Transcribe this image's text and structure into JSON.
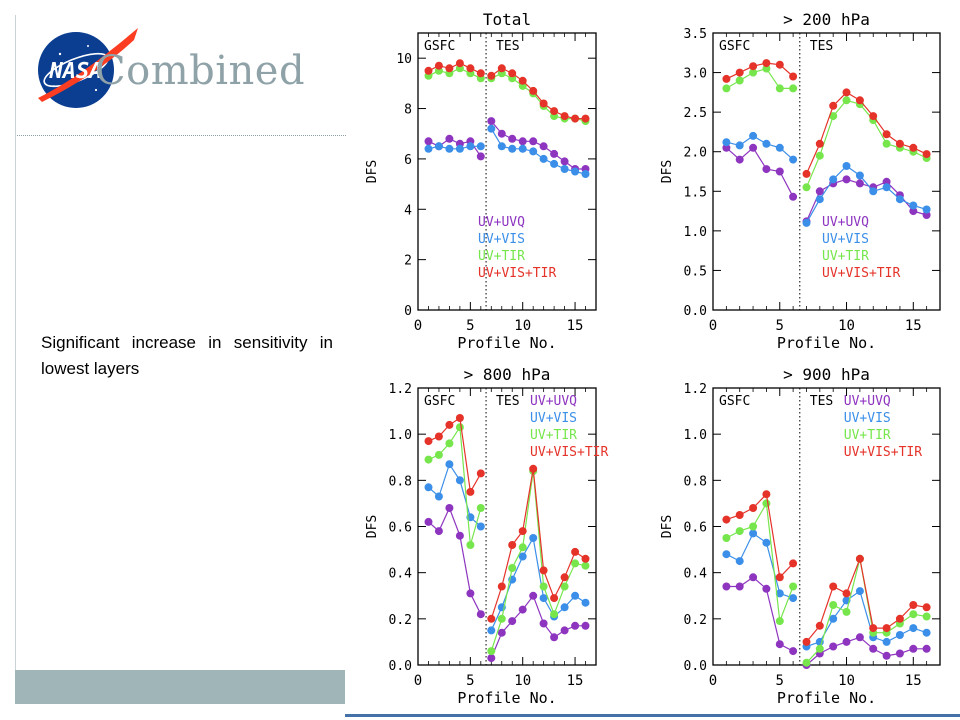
{
  "slide": {
    "title": "Combined",
    "body_text": "Significant increase in sensitivity in lowest layers",
    "logo": "nasa-meatball-logo"
  },
  "colors": {
    "UV+UVQ": "#8e35c0",
    "UV+VIS": "#3b8fe8",
    "UV+TIR": "#77e64d",
    "UV+VIS+TIR": "#e5332a"
  },
  "chart_data": [
    {
      "type": "line",
      "title": "Total",
      "xlabel": "Profile No.",
      "ylabel": "DFS",
      "xlim": [
        0,
        17
      ],
      "ylim": [
        0,
        11
      ],
      "xticks": [
        0,
        5,
        10,
        15
      ],
      "yticks": [
        0,
        2,
        4,
        6,
        8,
        10
      ],
      "ytick_labels": [
        "0",
        "2",
        "4",
        "6",
        "8",
        "10"
      ],
      "region_labels": [
        "GSFC",
        "TES"
      ],
      "divider_x": 6.5,
      "legend_placement": "lower-right",
      "segments": [
        [
          1,
          6
        ],
        [
          7,
          16
        ]
      ],
      "x": [
        1,
        2,
        3,
        4,
        5,
        6,
        7,
        8,
        9,
        10,
        11,
        12,
        13,
        14,
        15,
        16
      ],
      "series": [
        {
          "name": "UV+UVQ",
          "values": [
            6.7,
            6.5,
            6.8,
            6.6,
            6.7,
            6.1,
            7.5,
            7.0,
            6.8,
            6.7,
            6.7,
            6.5,
            6.2,
            5.9,
            5.6,
            5.6
          ]
        },
        {
          "name": "UV+VIS",
          "values": [
            6.4,
            6.5,
            6.4,
            6.4,
            6.5,
            6.5,
            7.2,
            6.5,
            6.4,
            6.4,
            6.3,
            6.0,
            5.8,
            5.6,
            5.5,
            5.4
          ]
        },
        {
          "name": "UV+TIR",
          "values": [
            9.3,
            9.5,
            9.4,
            9.6,
            9.4,
            9.2,
            9.2,
            9.4,
            9.2,
            8.9,
            8.6,
            8.1,
            7.7,
            7.6,
            7.6,
            7.5
          ]
        },
        {
          "name": "UV+VIS+TIR",
          "values": [
            9.5,
            9.7,
            9.6,
            9.8,
            9.6,
            9.4,
            9.3,
            9.6,
            9.4,
            9.1,
            8.7,
            8.2,
            7.9,
            7.7,
            7.6,
            7.6
          ]
        }
      ]
    },
    {
      "type": "line",
      "title": "> 200 hPa",
      "xlabel": "Profile No.",
      "ylabel": "DFS",
      "xlim": [
        0,
        17
      ],
      "ylim": [
        0,
        3.5
      ],
      "xticks": [
        0,
        5,
        10,
        15
      ],
      "yticks": [
        0,
        0.5,
        1.0,
        1.5,
        2.0,
        2.5,
        3.0,
        3.5
      ],
      "ytick_labels": [
        "0.0",
        "0.5",
        "1.0",
        "1.5",
        "2.0",
        "2.5",
        "3.0",
        "3.5"
      ],
      "region_labels": [
        "GSFC",
        "TES"
      ],
      "divider_x": 6.5,
      "legend_placement": "lower-right",
      "segments": [
        [
          1,
          6
        ],
        [
          7,
          16
        ]
      ],
      "x": [
        1,
        2,
        3,
        4,
        5,
        6,
        7,
        8,
        9,
        10,
        11,
        12,
        13,
        14,
        15,
        16
      ],
      "series": [
        {
          "name": "UV+UVQ",
          "values": [
            2.05,
            1.9,
            2.05,
            1.78,
            1.75,
            1.43,
            1.12,
            1.5,
            1.6,
            1.65,
            1.6,
            1.55,
            1.62,
            1.45,
            1.25,
            1.2
          ]
        },
        {
          "name": "UV+VIS",
          "values": [
            2.12,
            2.08,
            2.2,
            2.1,
            2.05,
            1.9,
            1.1,
            1.4,
            1.65,
            1.82,
            1.7,
            1.5,
            1.55,
            1.4,
            1.32,
            1.27
          ]
        },
        {
          "name": "UV+TIR",
          "values": [
            2.8,
            2.9,
            3.0,
            3.05,
            2.8,
            2.8,
            1.55,
            1.95,
            2.45,
            2.65,
            2.6,
            2.4,
            2.1,
            2.05,
            2.0,
            1.92
          ]
        },
        {
          "name": "UV+VIS+TIR",
          "values": [
            2.92,
            3.0,
            3.08,
            3.12,
            3.1,
            2.95,
            1.72,
            2.1,
            2.58,
            2.75,
            2.65,
            2.45,
            2.22,
            2.1,
            2.05,
            1.97
          ]
        }
      ]
    },
    {
      "type": "line",
      "title": "> 800 hPa",
      "xlabel": "Profile No.",
      "ylabel": "DFS",
      "xlim": [
        0,
        17
      ],
      "ylim": [
        0,
        1.2
      ],
      "xticks": [
        0,
        5,
        10,
        15
      ],
      "yticks": [
        0,
        0.2,
        0.4,
        0.6,
        0.8,
        1.0,
        1.2
      ],
      "ytick_labels": [
        "0.0",
        "0.2",
        "0.4",
        "0.6",
        "0.8",
        "1.0",
        "1.2"
      ],
      "region_labels": [
        "GSFC",
        "TES"
      ],
      "divider_x": 6.5,
      "legend_placement": "top-right",
      "segments": [
        [
          1,
          6
        ],
        [
          7,
          16
        ]
      ],
      "x": [
        1,
        2,
        3,
        4,
        5,
        6,
        7,
        8,
        9,
        10,
        11,
        12,
        13,
        14,
        15,
        16
      ],
      "series": [
        {
          "name": "UV+UVQ",
          "values": [
            0.62,
            0.58,
            0.68,
            0.56,
            0.31,
            0.22,
            0.03,
            0.14,
            0.19,
            0.24,
            0.3,
            0.18,
            0.12,
            0.15,
            0.17,
            0.17
          ]
        },
        {
          "name": "UV+VIS",
          "values": [
            0.77,
            0.73,
            0.87,
            0.8,
            0.64,
            0.6,
            0.15,
            0.25,
            0.37,
            0.47,
            0.55,
            0.29,
            0.21,
            0.25,
            0.3,
            0.27
          ]
        },
        {
          "name": "UV+TIR",
          "values": [
            0.89,
            0.91,
            0.96,
            1.03,
            0.52,
            0.68,
            0.06,
            0.2,
            0.42,
            0.51,
            0.84,
            0.34,
            0.22,
            0.34,
            0.44,
            0.43
          ]
        },
        {
          "name": "UV+VIS+TIR",
          "values": [
            0.97,
            0.99,
            1.04,
            1.07,
            0.75,
            0.83,
            0.2,
            0.34,
            0.52,
            0.58,
            0.85,
            0.41,
            0.29,
            0.38,
            0.49,
            0.46
          ]
        }
      ]
    },
    {
      "type": "line",
      "title": "> 900 hPa",
      "xlabel": "Profile No.",
      "ylabel": "DFS",
      "xlim": [
        0,
        17
      ],
      "ylim": [
        0,
        1.2
      ],
      "xticks": [
        0,
        5,
        10,
        15
      ],
      "yticks": [
        0,
        0.2,
        0.4,
        0.6,
        0.8,
        1.0,
        1.2
      ],
      "ytick_labels": [
        "0.0",
        "0.2",
        "0.4",
        "0.6",
        "0.8",
        "1.0",
        "1.2"
      ],
      "region_labels": [
        "GSFC",
        "TES"
      ],
      "divider_x": 6.5,
      "legend_placement": "top-right",
      "segments": [
        [
          1,
          6
        ],
        [
          7,
          16
        ]
      ],
      "x": [
        1,
        2,
        3,
        4,
        5,
        6,
        7,
        8,
        9,
        10,
        11,
        12,
        13,
        14,
        15,
        16
      ],
      "series": [
        {
          "name": "UV+UVQ",
          "values": [
            0.34,
            0.34,
            0.38,
            0.33,
            0.09,
            0.06,
            0.0,
            0.05,
            0.08,
            0.1,
            0.12,
            0.07,
            0.04,
            0.05,
            0.07,
            0.07
          ]
        },
        {
          "name": "UV+VIS",
          "values": [
            0.48,
            0.45,
            0.57,
            0.53,
            0.31,
            0.29,
            0.08,
            0.1,
            0.2,
            0.28,
            0.32,
            0.12,
            0.1,
            0.13,
            0.16,
            0.14
          ]
        },
        {
          "name": "UV+TIR",
          "values": [
            0.55,
            0.58,
            0.6,
            0.7,
            0.19,
            0.34,
            0.01,
            0.07,
            0.26,
            0.23,
            0.46,
            0.14,
            0.14,
            0.18,
            0.22,
            0.21
          ]
        },
        {
          "name": "UV+VIS+TIR",
          "values": [
            0.63,
            0.65,
            0.68,
            0.74,
            0.38,
            0.44,
            0.1,
            0.17,
            0.34,
            0.31,
            0.46,
            0.16,
            0.16,
            0.2,
            0.26,
            0.25
          ]
        }
      ]
    }
  ]
}
